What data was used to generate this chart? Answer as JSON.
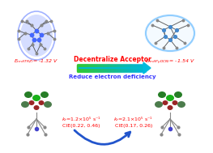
{
  "bg_color": "#ffffff",
  "arrow_text_top": "Decentralize Acceptor",
  "arrow_text_bottom": "Reduce electron deficiency",
  "arrow_top_color_left": "#00cc00",
  "arrow_top_color_right": "#00ccff",
  "arrow_bottom_color": "#3366ff",
  "left_label": "E_{red(TRZ)}= -1.32 V",
  "right_label": "E_{red(PyDCN)}= -1.54 V",
  "left_kr": "k_{r}=1.2×10⁵ s⁻¹",
  "left_cie": "CIE(0.22, 0.46)",
  "right_kr": "k_{r}=2.1×10⁵ s⁻¹",
  "right_cie": "CIE(0.17, 0.26)",
  "left_ellipse_color": "#4466ff",
  "right_ellipse_color": "#66bbff",
  "label_color": "#ff0000",
  "arrow_text_color": "#ff0000",
  "arrow_text2_color": "#3333ff"
}
